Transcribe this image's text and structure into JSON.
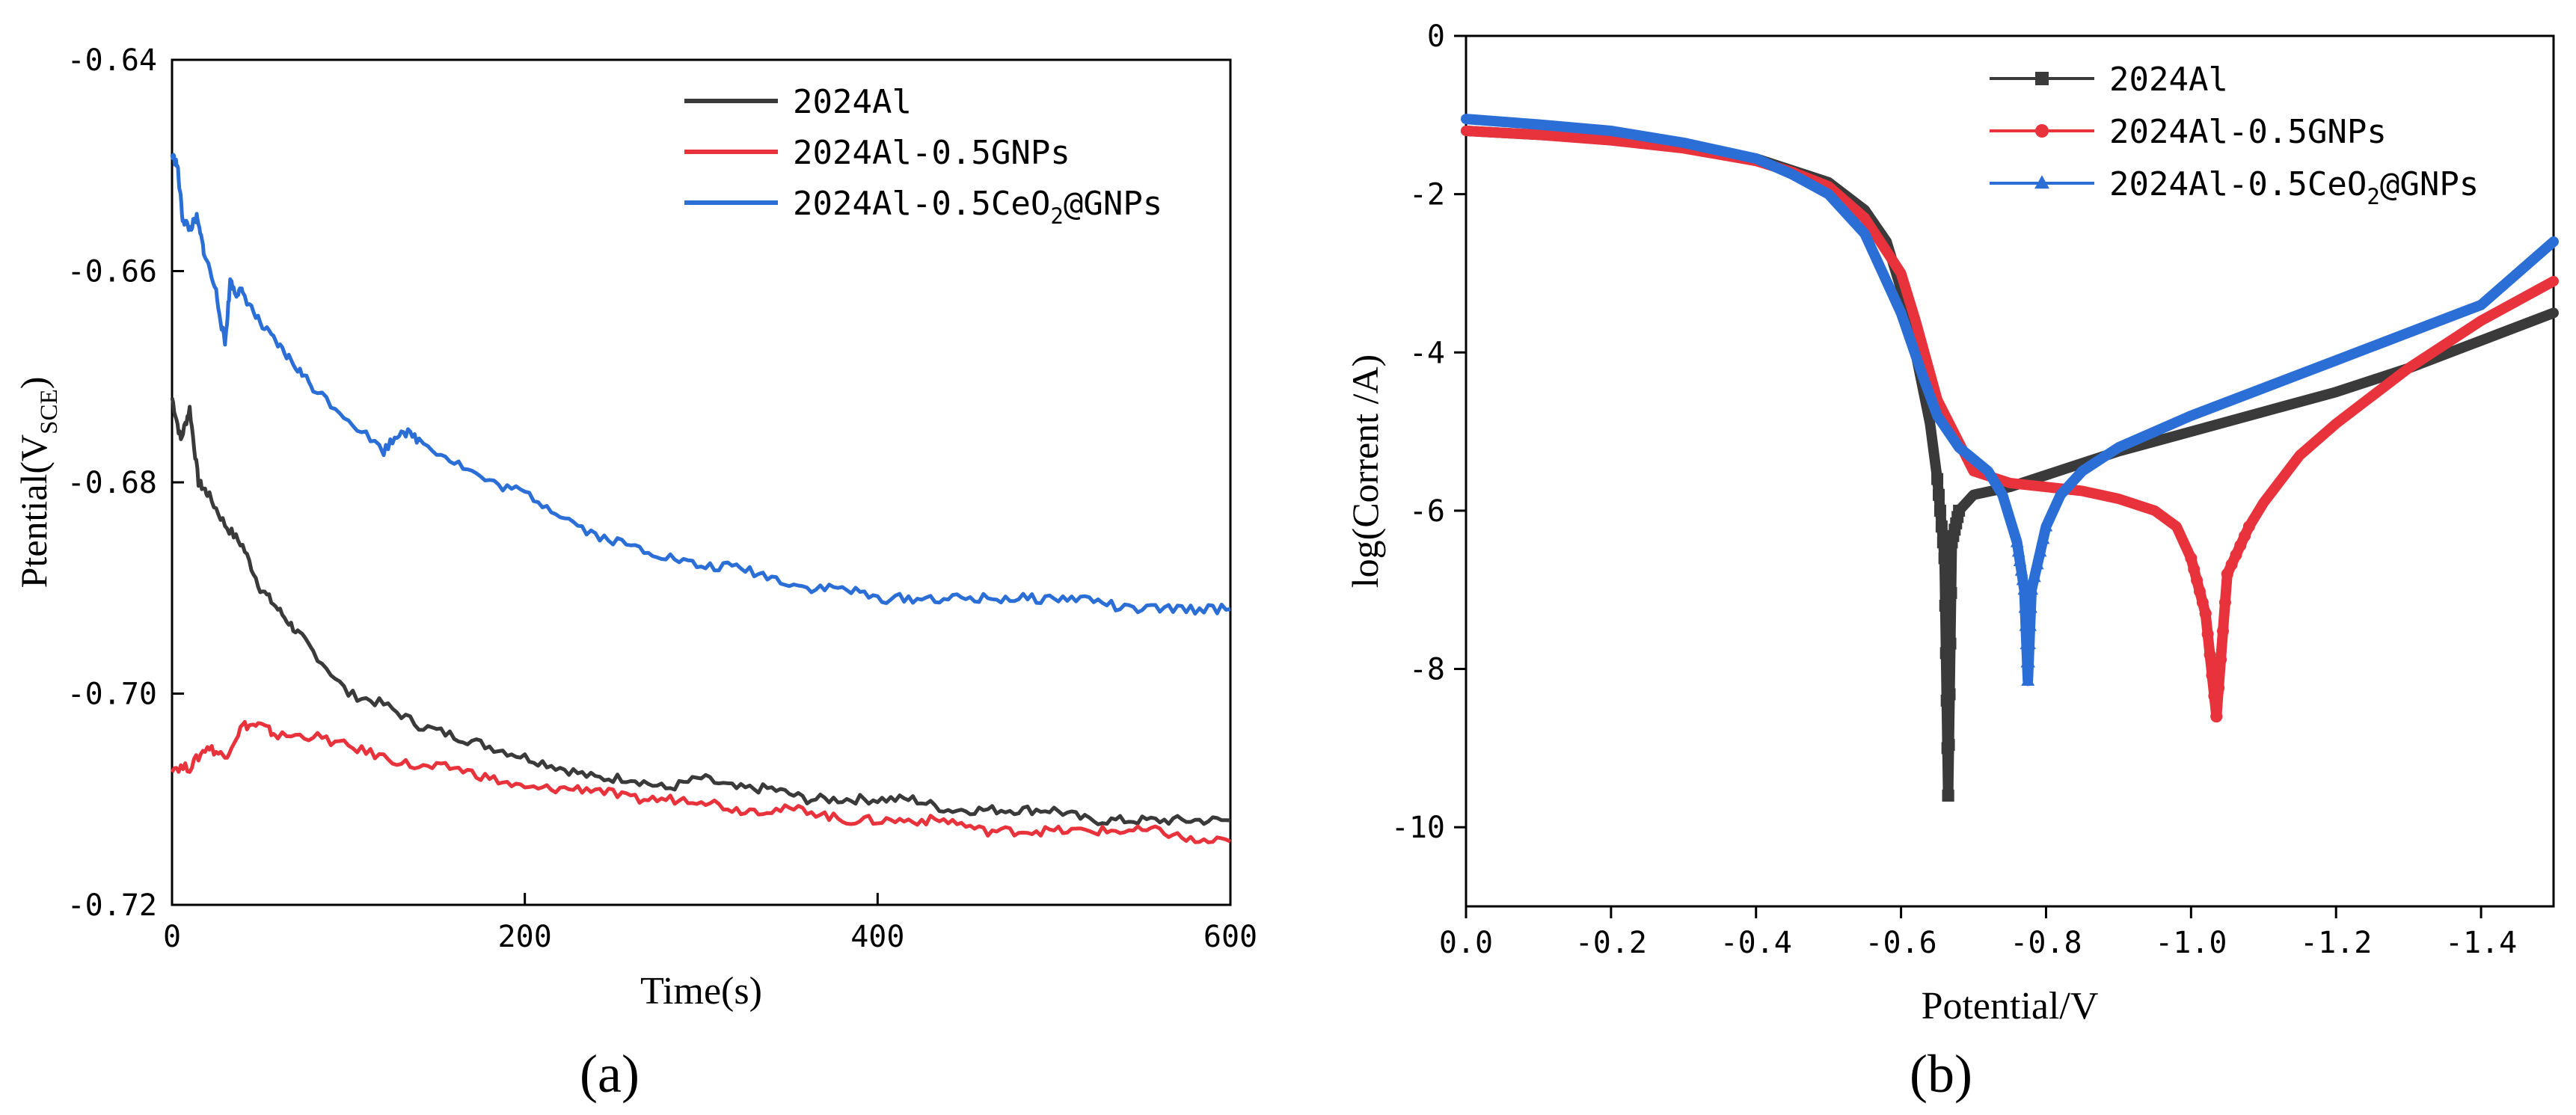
{
  "panels": {
    "a": {
      "caption": "(a)"
    },
    "b": {
      "caption": "(b)"
    }
  },
  "colors": {
    "black": "#3a3a3a",
    "red": "#e8333c",
    "blue": "#2b6fd6",
    "axis": "#000000"
  },
  "chart_data": [
    {
      "id": "a",
      "type": "line",
      "title": "",
      "xlabel": "Time(s)",
      "ylabel_main": "Ptential(V",
      "ylabel_sub": "SCE",
      "ylabel_close": ")",
      "xlim": [
        0,
        600
      ],
      "ylim": [
        -0.72,
        -0.64
      ],
      "y_inverted": true,
      "xticks": [
        0,
        200,
        400,
        600
      ],
      "xtick_labels": [
        "0",
        "200",
        "400",
        "600"
      ],
      "yticks": [
        -0.64,
        -0.66,
        -0.68,
        -0.7,
        -0.72
      ],
      "ytick_labels": [
        "-0.64",
        "-0.66",
        "-0.68",
        "-0.70",
        "-0.72"
      ],
      "legend_position": "top-right",
      "series": [
        {
          "name": "2024Al",
          "label_main": "2024Al",
          "label_sub": "",
          "label_tail": "",
          "color": "#3a3a3a",
          "x": [
            0,
            5,
            10,
            15,
            20,
            30,
            40,
            50,
            60,
            70,
            80,
            100,
            120,
            140,
            160,
            180,
            200,
            220,
            240,
            260,
            280,
            300,
            320,
            340,
            360,
            380,
            400,
            420,
            440,
            460,
            480,
            500,
            520,
            540,
            560,
            580,
            600
          ],
          "y": [
            -0.672,
            -0.676,
            -0.673,
            -0.68,
            -0.681,
            -0.684,
            -0.686,
            -0.69,
            -0.692,
            -0.694,
            -0.696,
            -0.7,
            -0.701,
            -0.703,
            -0.704,
            -0.705,
            -0.706,
            -0.707,
            -0.708,
            -0.708,
            -0.709,
            -0.708,
            -0.709,
            -0.709,
            -0.71,
            -0.71,
            -0.71,
            -0.71,
            -0.711,
            -0.711,
            -0.711,
            -0.711,
            -0.712,
            -0.712,
            -0.712,
            -0.712,
            -0.712
          ]
        },
        {
          "name": "2024Al-0.5GNPs",
          "label_main": "2024Al-0.5GNPs",
          "label_sub": "",
          "label_tail": "",
          "color": "#e8333c",
          "x": [
            0,
            10,
            20,
            30,
            40,
            50,
            60,
            80,
            100,
            120,
            140,
            160,
            180,
            200,
            220,
            240,
            260,
            280,
            300,
            320,
            340,
            360,
            380,
            400,
            420,
            440,
            460,
            480,
            500,
            520,
            540,
            560,
            580,
            600
          ],
          "y": [
            -0.707,
            -0.707,
            -0.705,
            -0.706,
            -0.703,
            -0.703,
            -0.704,
            -0.704,
            -0.705,
            -0.706,
            -0.707,
            -0.707,
            -0.708,
            -0.709,
            -0.709,
            -0.709,
            -0.71,
            -0.71,
            -0.71,
            -0.711,
            -0.711,
            -0.711,
            -0.712,
            -0.712,
            -0.712,
            -0.712,
            -0.713,
            -0.713,
            -0.713,
            -0.713,
            -0.713,
            -0.713,
            -0.714,
            -0.714
          ]
        },
        {
          "name": "2024Al-0.5CeO2@GNPs",
          "label_main": "2024Al-0.5CeO",
          "label_sub": "2",
          "label_tail": "@GNPs",
          "color": "#2b6fd6",
          "x": [
            0,
            3,
            6,
            10,
            14,
            18,
            25,
            30,
            33,
            36,
            40,
            50,
            60,
            70,
            80,
            100,
            120,
            130,
            140,
            160,
            180,
            200,
            220,
            240,
            260,
            280,
            300,
            320,
            340,
            360,
            380,
            400,
            420,
            440,
            460,
            480,
            500,
            520,
            540,
            560,
            580,
            600
          ],
          "y": [
            -0.649,
            -0.65,
            -0.655,
            -0.656,
            -0.655,
            -0.658,
            -0.662,
            -0.667,
            -0.661,
            -0.662,
            -0.662,
            -0.665,
            -0.667,
            -0.669,
            -0.671,
            -0.674,
            -0.677,
            -0.675,
            -0.676,
            -0.678,
            -0.68,
            -0.681,
            -0.683,
            -0.685,
            -0.686,
            -0.687,
            -0.688,
            -0.688,
            -0.689,
            -0.69,
            -0.69,
            -0.691,
            -0.691,
            -0.691,
            -0.691,
            -0.691,
            -0.691,
            -0.691,
            -0.692,
            -0.692,
            -0.692,
            -0.692
          ]
        }
      ]
    },
    {
      "id": "b",
      "type": "line",
      "title": "",
      "xlabel": "Potential/V",
      "ylabel": "log(Corrent /A)",
      "xlim": [
        0.0,
        -1.5
      ],
      "ylim": [
        -11,
        0
      ],
      "xticks": [
        0.0,
        -0.2,
        -0.4,
        -0.6,
        -0.8,
        -1.0,
        -1.2,
        -1.4
      ],
      "xtick_labels": [
        "0.0",
        "-0.2",
        "-0.4",
        "-0.6",
        "-0.8",
        "-1.0",
        "-1.2",
        "-1.4"
      ],
      "yticks": [
        0,
        -2,
        -4,
        -6,
        -8,
        -10
      ],
      "ytick_labels": [
        "0",
        "-2",
        "-4",
        "-6",
        "-8",
        "-10"
      ],
      "legend_position": "top-right",
      "series": [
        {
          "name": "2024Al",
          "label_main": "2024Al",
          "label_sub": "",
          "label_tail": "",
          "marker": "square",
          "color": "#3a3a3a",
          "x": [
            0.0,
            -0.1,
            -0.2,
            -0.3,
            -0.4,
            -0.45,
            -0.5,
            -0.55,
            -0.58,
            -0.6,
            -0.62,
            -0.64,
            -0.65,
            -0.66,
            -0.665,
            -0.67,
            -0.68,
            -0.7,
            -0.75,
            -0.8,
            -0.9,
            -1.0,
            -1.1,
            -1.2,
            -1.3,
            -1.4,
            -1.5
          ],
          "y": [
            -1.2,
            -1.25,
            -1.3,
            -1.4,
            -1.55,
            -1.7,
            -1.85,
            -2.2,
            -2.6,
            -3.2,
            -4.0,
            -4.9,
            -5.6,
            -6.6,
            -9.6,
            -6.4,
            -6.0,
            -5.8,
            -5.7,
            -5.55,
            -5.25,
            -5.0,
            -4.75,
            -4.5,
            -4.2,
            -3.85,
            -3.5
          ]
        },
        {
          "name": "2024Al-0.5GNPs",
          "label_main": "2024Al-0.5GNPs",
          "label_sub": "",
          "label_tail": "",
          "marker": "circle",
          "color": "#e8333c",
          "x": [
            0.0,
            -0.1,
            -0.2,
            -0.3,
            -0.4,
            -0.45,
            -0.5,
            -0.55,
            -0.6,
            -0.62,
            -0.65,
            -0.7,
            -0.75,
            -0.8,
            -0.85,
            -0.9,
            -0.95,
            -0.98,
            -1.0,
            -1.02,
            -1.035,
            -1.05,
            -1.08,
            -1.1,
            -1.15,
            -1.2,
            -1.3,
            -1.4,
            -1.5
          ],
          "y": [
            -1.2,
            -1.25,
            -1.32,
            -1.42,
            -1.58,
            -1.72,
            -1.9,
            -2.3,
            -3.0,
            -3.6,
            -4.6,
            -5.5,
            -5.65,
            -5.7,
            -5.75,
            -5.85,
            -6.0,
            -6.2,
            -6.6,
            -7.3,
            -8.6,
            -6.8,
            -6.2,
            -5.9,
            -5.3,
            -4.9,
            -4.2,
            -3.6,
            -3.1
          ]
        },
        {
          "name": "2024Al-0.5CeO2@GNPs",
          "label_main": "2024Al-0.5CeO",
          "label_sub": "2",
          "label_tail": "@GNPs",
          "marker": "triangle",
          "color": "#2b6fd6",
          "x": [
            0.0,
            -0.1,
            -0.2,
            -0.3,
            -0.4,
            -0.45,
            -0.5,
            -0.55,
            -0.6,
            -0.63,
            -0.65,
            -0.68,
            -0.7,
            -0.72,
            -0.74,
            -0.76,
            -0.77,
            -0.775,
            -0.78,
            -0.8,
            -0.82,
            -0.85,
            -0.9,
            -1.0,
            -1.1,
            -1.2,
            -1.3,
            -1.4,
            -1.5
          ],
          "y": [
            -1.05,
            -1.12,
            -1.2,
            -1.35,
            -1.55,
            -1.75,
            -2.0,
            -2.5,
            -3.5,
            -4.3,
            -4.8,
            -5.2,
            -5.35,
            -5.5,
            -5.8,
            -6.4,
            -7.0,
            -8.15,
            -7.0,
            -6.2,
            -5.8,
            -5.5,
            -5.2,
            -4.8,
            -4.45,
            -4.1,
            -3.75,
            -3.4,
            -2.6
          ]
        }
      ]
    }
  ]
}
